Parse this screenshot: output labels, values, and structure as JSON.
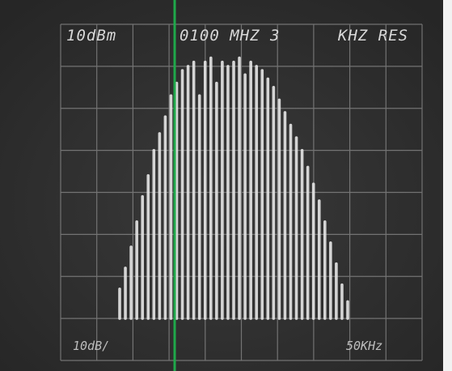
{
  "screen": {
    "top_left": "10dBm",
    "top_center": "0100 MHZ 3",
    "top_right": "KHZ RES",
    "bottom_left": "10dB/",
    "bottom_right": "50KHz",
    "spectrum": {
      "baseline": 1,
      "heights": [
        1.7,
        2.2,
        2.7,
        3.3,
        3.9,
        4.4,
        5.0,
        5.4,
        5.8,
        6.3,
        6.6,
        6.9,
        7.0,
        7.1,
        6.3,
        7.1,
        7.2,
        6.6,
        7.1,
        7.0,
        7.1,
        7.2,
        6.8,
        7.1,
        7.0,
        6.9,
        6.7,
        6.5,
        6.2,
        5.9,
        5.6,
        5.3,
        5.0,
        4.6,
        4.2,
        3.8,
        3.3,
        2.8,
        2.3,
        1.8,
        1.4
      ]
    }
  }
}
